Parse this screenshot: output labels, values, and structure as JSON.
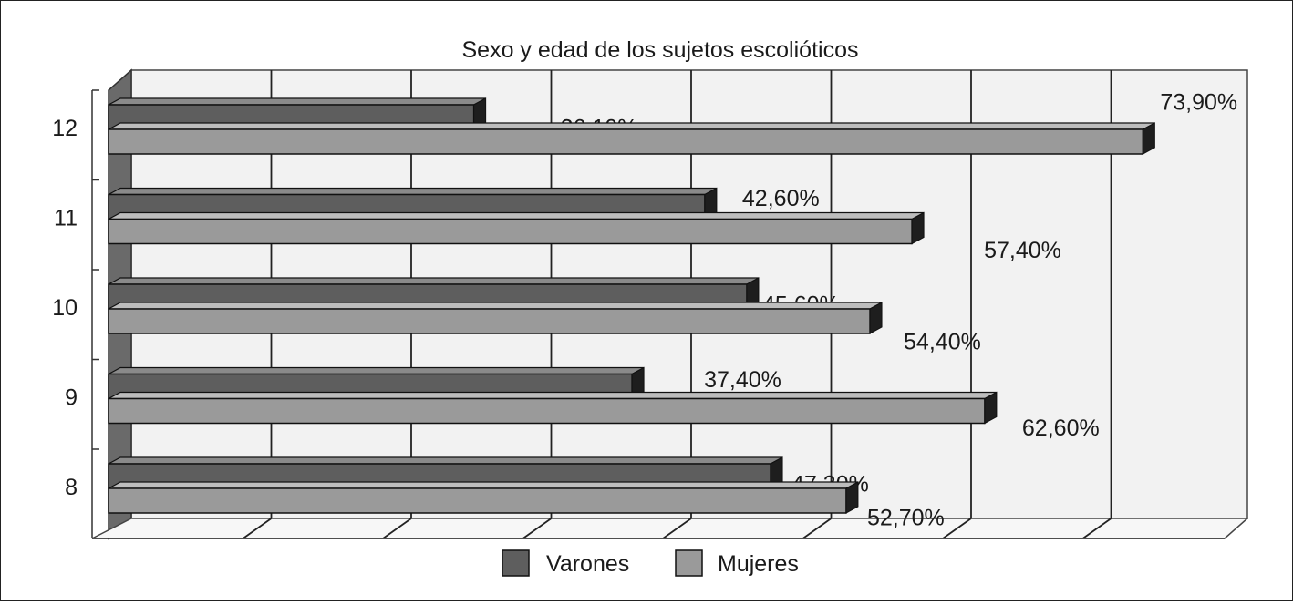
{
  "chart_data": {
    "type": "bar",
    "orientation": "horizontal",
    "title": "Sexo y edad de los sujetos escolióticos",
    "categories": [
      "12",
      "11",
      "10",
      "9",
      "8"
    ],
    "series": [
      {
        "name": "Varones",
        "values": [
          26.1,
          42.6,
          45.6,
          37.4,
          47.3
        ],
        "labels": [
          "26,10%",
          "42,60%",
          "45,60%",
          "37,40%",
          "47,30%"
        ],
        "color": "#5e5e5e"
      },
      {
        "name": "Mujeres",
        "values": [
          73.9,
          57.4,
          54.4,
          62.6,
          52.7
        ],
        "labels": [
          "73,90%",
          "57,40%",
          "54,40%",
          "62,60%",
          "52,70%"
        ],
        "color": "#9a9a9a"
      }
    ],
    "xlim": [
      0,
      80
    ],
    "grid": true,
    "legend": "bottom",
    "style": "3d"
  }
}
